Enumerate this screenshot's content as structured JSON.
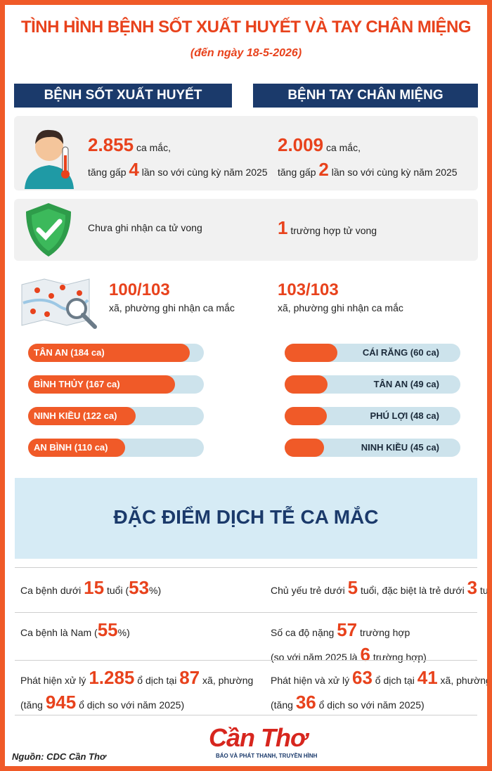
{
  "header": {
    "title": "TÌNH HÌNH BỆNH SỐT XUẤT HUYẾT VÀ TAY CHÂN MIỆNG",
    "subtitle": "(đến ngày 18-5-2026)"
  },
  "columns": [
    {
      "heading": "BỆNH SỐT XUẤT HUYẾT",
      "cases": [
        [
          {
            "text": "2.855",
            "big": true
          },
          {
            "text": " ca mắc,"
          }
        ],
        [
          {
            "text": "tăng gấp "
          },
          {
            "text": "4",
            "big": true
          },
          {
            "text": " lần so với cùng kỳ năm 2025"
          }
        ]
      ],
      "deaths": [
        [
          {
            "text": "Chưa ghi nhận ca tử vong"
          }
        ]
      ],
      "communes": [
        [
          {
            "text": "100/103",
            "big": true
          }
        ],
        [
          {
            "text": "xã, phường ghi nhận ca mắc"
          }
        ]
      ],
      "top_areas": {
        "labels": [
          "TÂN AN (184 ca)",
          "BÌNH THỦY (167 ca)",
          "NINH KIỀU (122 ca)",
          "AN BÌNH (110 ca)"
        ],
        "values": [
          184,
          167,
          122,
          110
        ],
        "xlim": [
          0,
          200
        ],
        "color": "#f05a28"
      }
    },
    {
      "heading": "BỆNH TAY CHÂN MIỆNG",
      "cases": [
        [
          {
            "text": "2.009",
            "big": true
          },
          {
            "text": " ca mắc,"
          }
        ],
        [
          {
            "text": "tăng gấp "
          },
          {
            "text": "2",
            "big": true
          },
          {
            "text": " lần so với cùng kỳ năm 2025"
          }
        ]
      ],
      "deaths": [
        [
          {
            "text": "1",
            "big": true
          },
          {
            "text": " trường hợp tử vong"
          }
        ]
      ],
      "communes": [
        [
          {
            "text": "103/103",
            "big": true
          }
        ],
        [
          {
            "text": "xã, phường ghi nhận ca mắc"
          }
        ]
      ],
      "top_areas": {
        "labels": [
          "CÁI RĂNG (60 ca)",
          "TÂN AN (49 ca)",
          "PHÚ LỢI (48 ca)",
          "NINH KIỀU (45 ca)"
        ],
        "values": [
          60,
          49,
          48,
          45
        ],
        "xlim": [
          0,
          200
        ],
        "color": "#f05a28"
      }
    }
  ],
  "epi": {
    "title": "ĐẶC ĐIỂM DỊCH TỄ CA MẮC",
    "rows": [
      [
        [
          [
            {
              "text": "Ca bệnh dưới "
            },
            {
              "text": "15",
              "big": true
            },
            {
              "text": " tuổi ("
            },
            {
              "text": "53",
              "big": true
            },
            {
              "text": "%)"
            }
          ]
        ],
        [
          [
            {
              "text": "Chủ yếu trẻ dưới "
            },
            {
              "text": "5",
              "big": true
            },
            {
              "text": " tuổi, đặc biệt là trẻ dưới "
            },
            {
              "text": "3",
              "big": true
            },
            {
              "text": " tuổi"
            }
          ]
        ]
      ],
      [
        [
          [
            {
              "text": "Ca bệnh là Nam ("
            },
            {
              "text": "55",
              "big": true
            },
            {
              "text": "%)"
            }
          ]
        ],
        [
          [
            {
              "text": "Số ca độ nặng "
            },
            {
              "text": "57",
              "big": true
            },
            {
              "text": " trường hợp"
            }
          ],
          [
            {
              "text": "(so với năm 2025 là "
            },
            {
              "text": "6",
              "big": true
            },
            {
              "text": " trường hợp)"
            }
          ]
        ]
      ],
      [
        [
          [
            {
              "text": "Phát hiện xử lý "
            },
            {
              "text": "1.285",
              "big": true
            },
            {
              "text": " ổ dịch tại "
            },
            {
              "text": "87",
              "big": true
            },
            {
              "text": " xã, phường"
            }
          ],
          [
            {
              "text": "(tăng "
            },
            {
              "text": "945",
              "big": true
            },
            {
              "text": " ổ dịch so với năm 2025)"
            }
          ]
        ],
        [
          [
            {
              "text": "Phát hiện và xử lý "
            },
            {
              "text": "63",
              "big": true
            },
            {
              "text": " ổ dịch tại "
            },
            {
              "text": "41",
              "big": true
            },
            {
              "text": " xã, phường"
            }
          ],
          [
            {
              "text": "(tăng "
            },
            {
              "text": "36",
              "big": true
            },
            {
              "text": " ổ dịch so với năm 2025)"
            }
          ]
        ]
      ]
    ]
  },
  "footer": {
    "source": "Nguồn: CDC Cần Thơ",
    "logo": "Cần Thơ",
    "tagline": "BÁO VÀ PHÁT THANH, TRUYỀN HÌNH"
  }
}
